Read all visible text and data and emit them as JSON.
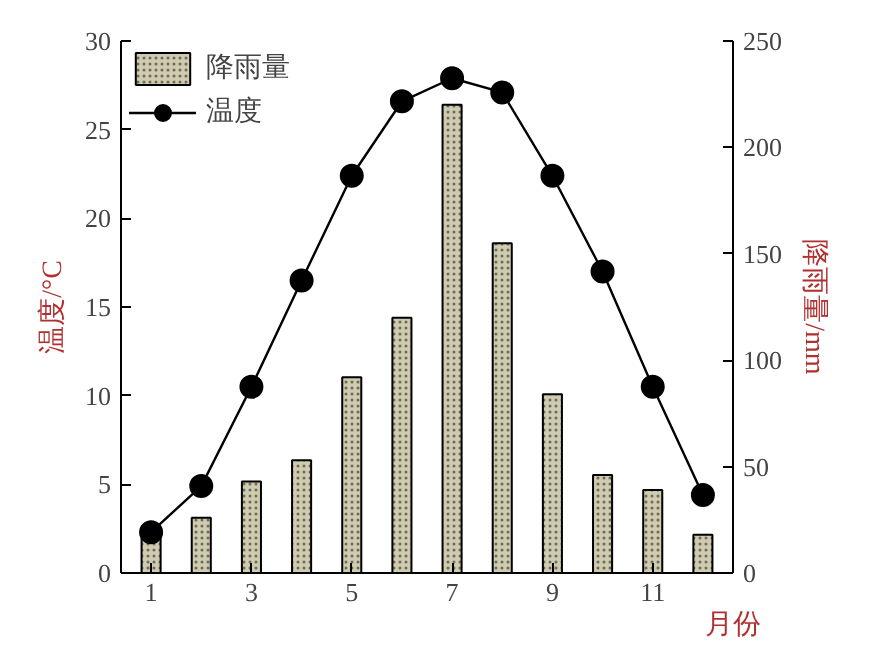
{
  "chart_data": {
    "type": "bar",
    "x": [
      1,
      2,
      3,
      4,
      5,
      6,
      7,
      8,
      9,
      10,
      11,
      12
    ],
    "xlim": [
      0.4,
      12.6
    ],
    "xticks": [
      1,
      3,
      5,
      7,
      9,
      11
    ],
    "xlabel": "月份",
    "ylabel": "温度/°C",
    "y2label": "降雨量/mm",
    "ylim": [
      0,
      30
    ],
    "yticks": [
      0,
      5,
      10,
      15,
      20,
      25,
      30
    ],
    "y2lim": [
      0,
      250
    ],
    "y2ticks": [
      0,
      50,
      100,
      150,
      200,
      250
    ],
    "legend": "top left",
    "grid": false,
    "series": [
      {
        "name": "降雨量",
        "axis": "y2",
        "color": "#cfcbb0",
        "values": [
          17,
          26,
          43,
          53,
          92,
          120,
          220,
          155,
          84,
          46,
          39,
          18
        ]
      },
      {
        "name": "温度",
        "type": "line",
        "axis": "y",
        "color": "#000000",
        "marker": "circle",
        "values": [
          2.3,
          4.9,
          10.5,
          16.5,
          22.4,
          26.6,
          27.9,
          27.1,
          22.4,
          17.0,
          10.5,
          4.4
        ]
      }
    ]
  }
}
